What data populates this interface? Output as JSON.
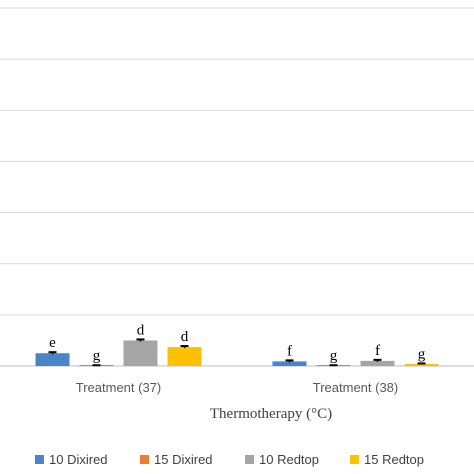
{
  "chart_data": {
    "type": "bar",
    "title": "",
    "xlabel": "Thermotherapy (°C)",
    "ylabel": "",
    "categories": [
      "Treatment (37)",
      "Treatment (38)"
    ],
    "ylim": [
      0,
      7
    ],
    "grid": true,
    "legend_position": "bottom",
    "series": [
      {
        "name": "10 Dixired",
        "color": "#4a86c6",
        "values": [
          0.25,
          0.09
        ],
        "errors": [
          0.02,
          0.02
        ],
        "letters": [
          "e",
          "f"
        ]
      },
      {
        "name": "15 Dixired",
        "color": "#ed7d31",
        "values": [
          0.01,
          0.01
        ],
        "errors": [
          0.005,
          0.005
        ],
        "letters": [
          "g",
          "g"
        ]
      },
      {
        "name": "10 Redtop",
        "color": "#a5a5a5",
        "values": [
          0.5,
          0.1
        ],
        "errors": [
          0.02,
          0.02
        ],
        "letters": [
          "d",
          "f"
        ]
      },
      {
        "name": "15 Redtop",
        "color": "#ffc000",
        "values": [
          0.37,
          0.04
        ],
        "errors": [
          0.02,
          0.01
        ],
        "letters": [
          "d",
          "g"
        ]
      }
    ]
  }
}
